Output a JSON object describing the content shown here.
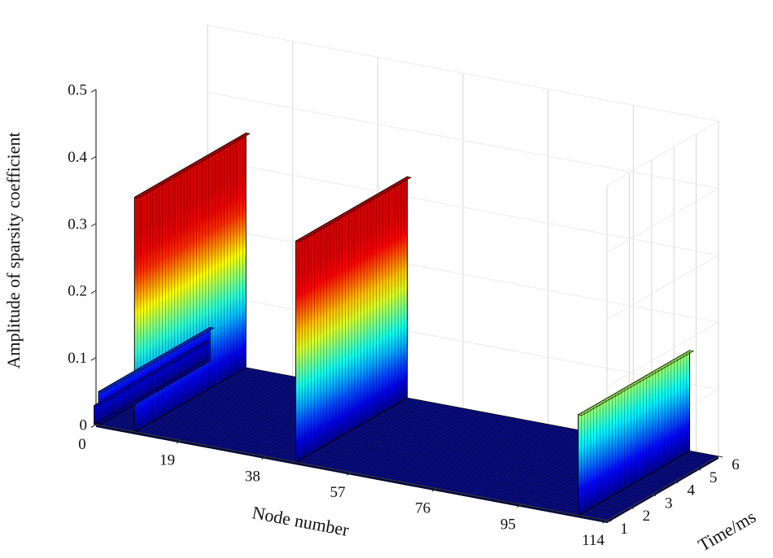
{
  "chart_data": {
    "type": "bar",
    "variant": "3d-bar-walls-matlab-bar3",
    "title": "",
    "xlabel": "Node number",
    "ylabel": "Time/ms",
    "zlabel": "Amplitude of sparsity coefficient",
    "xlim": [
      0,
      114
    ],
    "ylim": [
      1,
      6
    ],
    "zlim": [
      0,
      0.5
    ],
    "x_ticks": [
      0,
      19,
      38,
      57,
      76,
      95,
      114
    ],
    "y_ticks": [
      1,
      2,
      3,
      4,
      5,
      6
    ],
    "z_ticks": [
      0,
      0.1,
      0.2,
      0.3,
      0.4,
      0.5
    ],
    "time_samples": 36,
    "ridges": [
      {
        "node": 0,
        "amplitude": 0.028
      },
      {
        "node": 1,
        "amplitude": 0.05
      },
      {
        "node": 9,
        "amplitude": 0.35
      },
      {
        "node": 45,
        "amplitude": 0.33
      },
      {
        "node": 108,
        "amplitude": 0.15
      }
    ],
    "baseline_amplitude": 0.002,
    "colormap": "jet",
    "color_axis_max": 0.28,
    "colormap_stops": [
      [
        0.0,
        "#00008f"
      ],
      [
        0.125,
        "#0000ff"
      ],
      [
        0.375,
        "#00ffff"
      ],
      [
        0.625,
        "#ffff00"
      ],
      [
        0.875,
        "#ff0000"
      ],
      [
        1.0,
        "#d70000"
      ]
    ],
    "floor_color": "#0a0d86",
    "axis_color": "#333333",
    "background": "#ffffff"
  }
}
